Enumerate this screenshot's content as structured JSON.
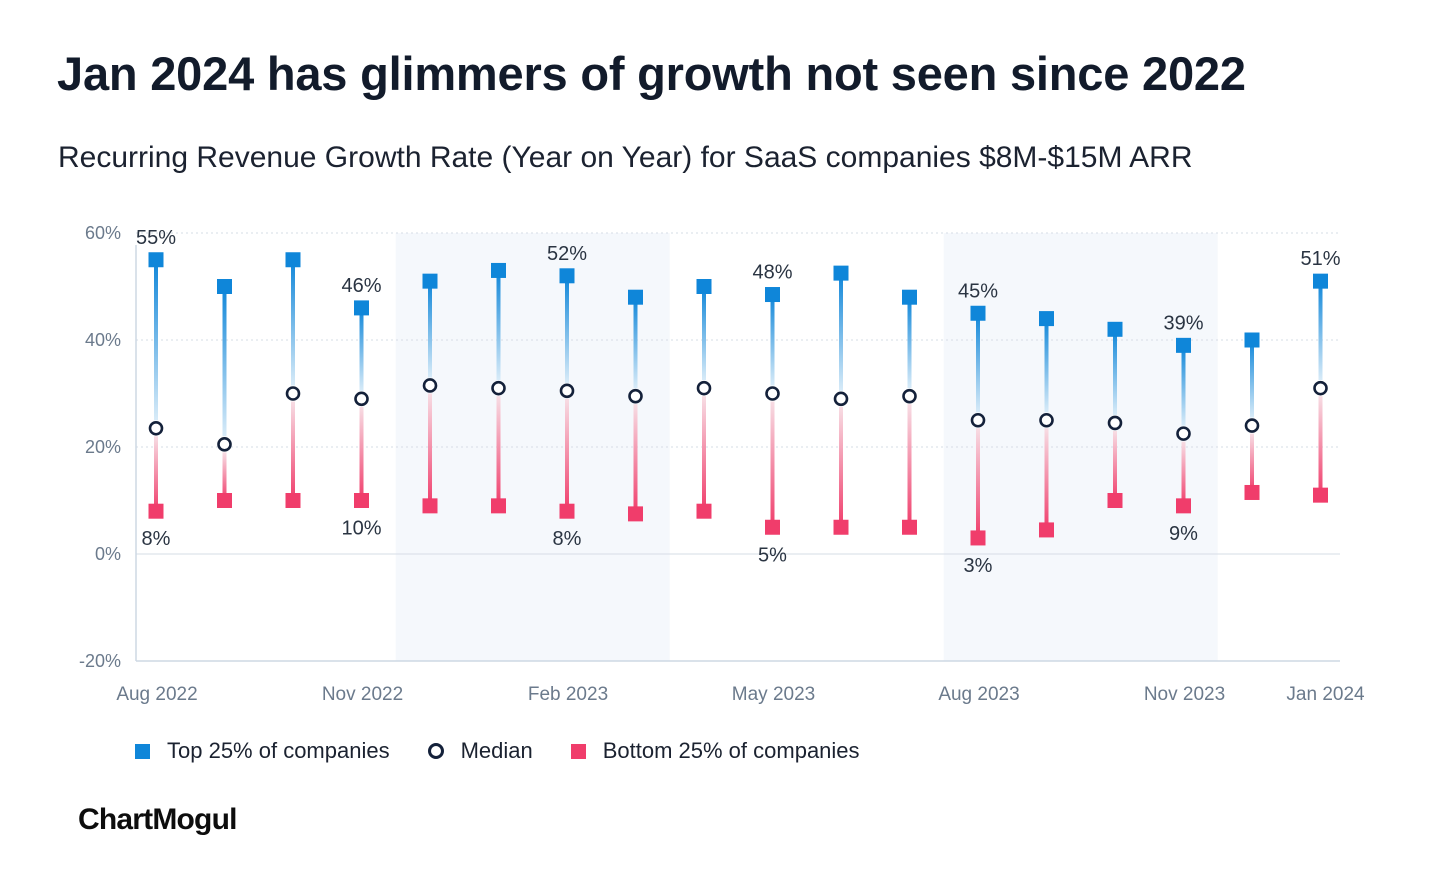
{
  "title": "Jan 2024 has glimmers of growth not seen since 2022",
  "subtitle": "Recurring Revenue Growth Rate (Year on Year) for SaaS companies $8M-$15M ARR",
  "brand": "ChartMogul",
  "legend": {
    "top": "Top 25% of companies",
    "median": "Median",
    "bottom": "Bottom 25% of companies"
  },
  "colors": {
    "top": "#0f86d9",
    "median": "#14213a",
    "bottom": "#f03d6b",
    "band": "#f5f8fc",
    "grid": "#d6dde6"
  },
  "chart_data": {
    "type": "scatter",
    "ylim": [
      -20,
      60
    ],
    "y_ticks": [
      "60%",
      "40%",
      "20%",
      "0%",
      "-20%"
    ],
    "y_tick_values": [
      60,
      40,
      20,
      0,
      -20
    ],
    "x_tick_labels": [
      {
        "label": "Aug 2022",
        "index": 0
      },
      {
        "label": "Nov 2022",
        "index": 3
      },
      {
        "label": "Feb 2023",
        "index": 6
      },
      {
        "label": "May 2023",
        "index": 9
      },
      {
        "label": "Aug 2023",
        "index": 12
      },
      {
        "label": "Nov 2023",
        "index": 15
      },
      {
        "label": "Jan 2024",
        "index": 17
      }
    ],
    "categories": [
      "Aug 2022",
      "Sep 2022",
      "Oct 2022",
      "Nov 2022",
      "Dec 2022",
      "Jan 2023",
      "Feb 2023",
      "Mar 2023",
      "Apr 2023",
      "May 2023",
      "Jun 2023",
      "Jul 2023",
      "Aug 2023",
      "Sep 2023",
      "Oct 2023",
      "Nov 2023",
      "Dec 2023",
      "Jan 2024"
    ],
    "shaded_ranges": [
      [
        4,
        7
      ],
      [
        12,
        15
      ]
    ],
    "series": [
      {
        "name": "Top 25% of companies",
        "values": [
          55,
          50,
          55,
          46,
          51,
          53,
          52,
          48,
          50,
          48.5,
          52.5,
          48,
          45,
          44,
          42,
          39,
          40,
          51
        ]
      },
      {
        "name": "Median",
        "values": [
          23.5,
          20.5,
          30,
          29,
          31.5,
          31,
          30.5,
          29.5,
          31,
          30,
          29,
          29.5,
          25,
          25,
          24.5,
          22.5,
          24,
          31
        ]
      },
      {
        "name": "Bottom 25% of companies",
        "values": [
          8,
          10,
          10,
          10,
          9,
          9,
          8,
          7.5,
          8,
          5,
          5,
          5,
          3,
          4.5,
          10,
          9,
          11.5,
          11
        ]
      }
    ],
    "annotations": [
      {
        "index": 0,
        "top": "55%",
        "bottom": "8%"
      },
      {
        "index": 3,
        "top": "46%",
        "bottom": "10%"
      },
      {
        "index": 6,
        "top": "52%",
        "bottom": "8%"
      },
      {
        "index": 9,
        "top": "48%",
        "bottom": "5%"
      },
      {
        "index": 12,
        "top": "45%",
        "bottom": "3%"
      },
      {
        "index": 15,
        "top": "39%",
        "bottom": "9%"
      },
      {
        "index": 17,
        "top": "51%"
      }
    ]
  }
}
